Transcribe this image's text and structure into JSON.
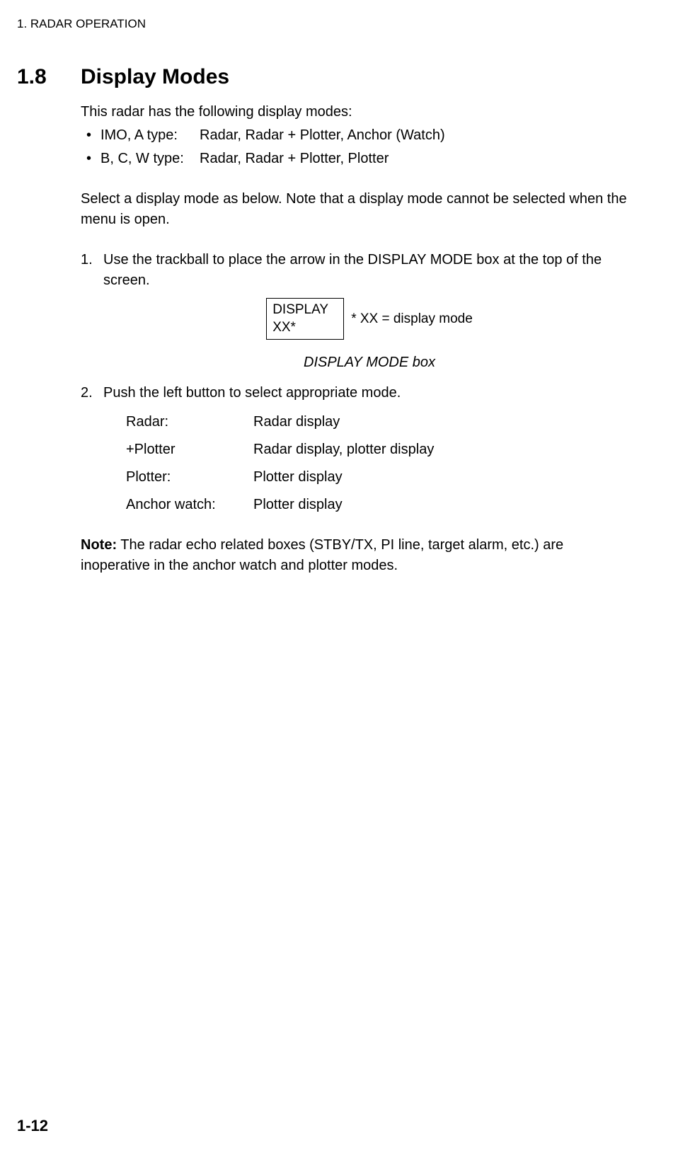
{
  "header": {
    "running": "1. RADAR OPERATION"
  },
  "section": {
    "number": "1.8",
    "title": "Display Modes"
  },
  "intro": "This radar has the following display modes:",
  "bullets": [
    {
      "label": "IMO, A type:",
      "value": "Radar, Radar + Plotter, Anchor (Watch)"
    },
    {
      "label": "B, C, W type:",
      "value": "Radar, Radar + Plotter, Plotter"
    }
  ],
  "para_select": "Select a display mode as below. Note that a display mode cannot be selected when the menu is open.",
  "steps": {
    "s1": {
      "num": "1.",
      "text": "Use the trackball to place the arrow in the DISPLAY MODE box at the top of the screen."
    },
    "s2": {
      "num": "2.",
      "text": "Push the left button to select appropriate mode."
    }
  },
  "diagram": {
    "line1": "DISPLAY",
    "line2": "XX*",
    "annot": "* XX = display mode"
  },
  "caption": "DISPLAY MODE box",
  "modes": [
    {
      "k": "Radar:",
      "v": "Radar display"
    },
    {
      "k": "+Plotter",
      "v": "Radar display, plotter display"
    },
    {
      "k": "Plotter:",
      "v": "Plotter display"
    },
    {
      "k": "Anchor watch:",
      "v": "Plotter display"
    }
  ],
  "note": {
    "label": "Note:",
    "text": " The radar echo related boxes (STBY/TX, PI line, target alarm, etc.) are inoperative in the anchor watch and plotter modes."
  },
  "page_num": "1-12"
}
